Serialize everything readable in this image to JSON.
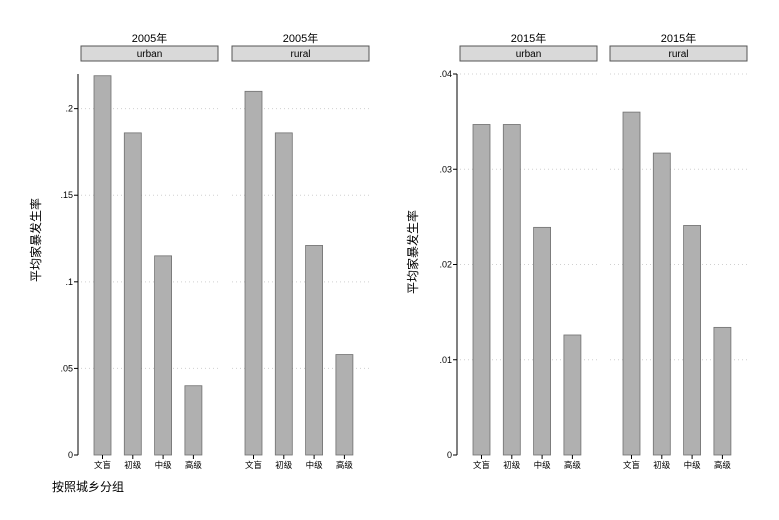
{
  "chart_data": [
    {
      "type": "bar",
      "panels": [
        {
          "year_label": "2005年",
          "area_label": "urban",
          "categories": [
            "文盲",
            "初级",
            "中级",
            "高级"
          ],
          "values": [
            0.219,
            0.186,
            0.115,
            0.04
          ]
        },
        {
          "year_label": "2005年",
          "area_label": "rural",
          "categories": [
            "文盲",
            "初级",
            "中级",
            "高级"
          ],
          "values": [
            0.21,
            0.186,
            0.121,
            0.058
          ]
        }
      ],
      "ylabel": "平均家暴发生率",
      "xlabel": "按照城乡分组",
      "ylim": [
        0,
        0.22
      ],
      "yticks": [
        0,
        0.05,
        0.1,
        0.15,
        0.2
      ],
      "ytick_labels": [
        "0",
        ".05",
        ".1",
        ".15",
        ".2"
      ],
      "grid": true,
      "bar_color": "#b0b0b0",
      "strip_color": "#d9d9d9"
    },
    {
      "type": "bar",
      "panels": [
        {
          "year_label": "2015年",
          "area_label": "urban",
          "categories": [
            "文盲",
            "初级",
            "中级",
            "高级"
          ],
          "values": [
            0.0347,
            0.0347,
            0.0239,
            0.0126
          ]
        },
        {
          "year_label": "2015年",
          "area_label": "rural",
          "categories": [
            "文盲",
            "初级",
            "中级",
            "高级"
          ],
          "values": [
            0.036,
            0.0317,
            0.0241,
            0.0134
          ]
        }
      ],
      "ylabel": "平均家暴发生率",
      "xlabel": "",
      "ylim": [
        0,
        0.04
      ],
      "yticks": [
        0,
        0.01,
        0.02,
        0.03,
        0.04
      ],
      "ytick_labels": [
        "0",
        ".01",
        ".02",
        ".03",
        ".04"
      ],
      "grid": true,
      "bar_color": "#b0b0b0",
      "strip_color": "#d9d9d9"
    }
  ]
}
